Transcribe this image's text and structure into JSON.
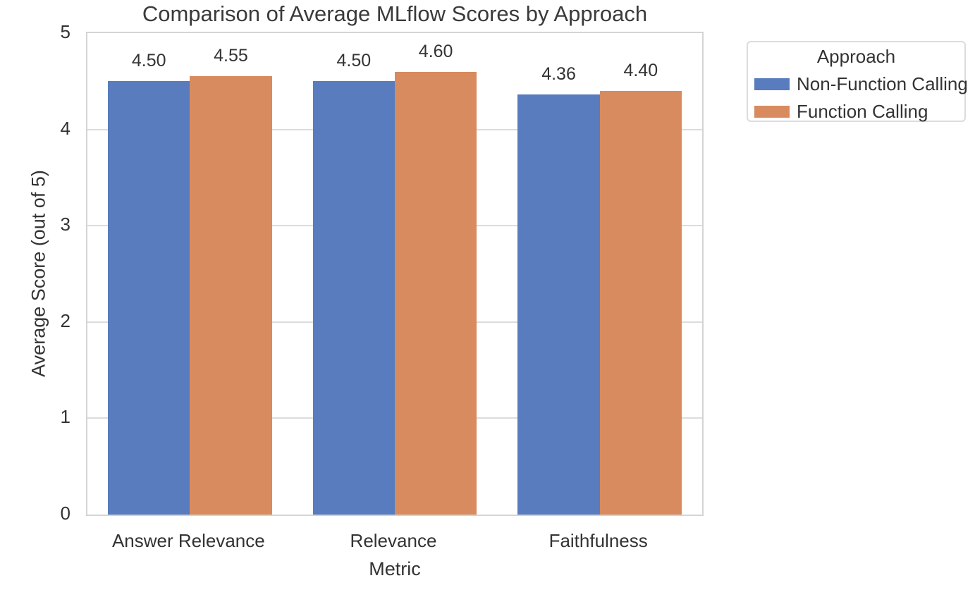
{
  "chart_data": {
    "type": "bar",
    "title": "Comparison of Average MLflow Scores by Approach",
    "xlabel": "Metric",
    "ylabel": "Average Score (out of 5)",
    "categories": [
      "Answer Relevance",
      "Relevance",
      "Faithfulness"
    ],
    "series": [
      {
        "name": "Non-Function Calling",
        "color": "#587CBE",
        "values": [
          4.5,
          4.5,
          4.36
        ],
        "value_labels": [
          "4.50",
          "4.50",
          "4.36"
        ]
      },
      {
        "name": "Function Calling",
        "color": "#D88B5E",
        "values": [
          4.55,
          4.6,
          4.4
        ],
        "value_labels": [
          "4.55",
          "4.60",
          "4.40"
        ]
      }
    ],
    "ylim": [
      0,
      5
    ],
    "yticks": [
      "0",
      "1",
      "2",
      "3",
      "4",
      "5"
    ],
    "grid": "horizontal",
    "bar_group_width": 0.8,
    "legend": {
      "title": "Approach",
      "position": "outside-upper-right"
    },
    "colors": {
      "grid": "#dcdcdc",
      "spine": "#d4d4d4",
      "text": "#333333",
      "background": "#ffffff"
    }
  }
}
